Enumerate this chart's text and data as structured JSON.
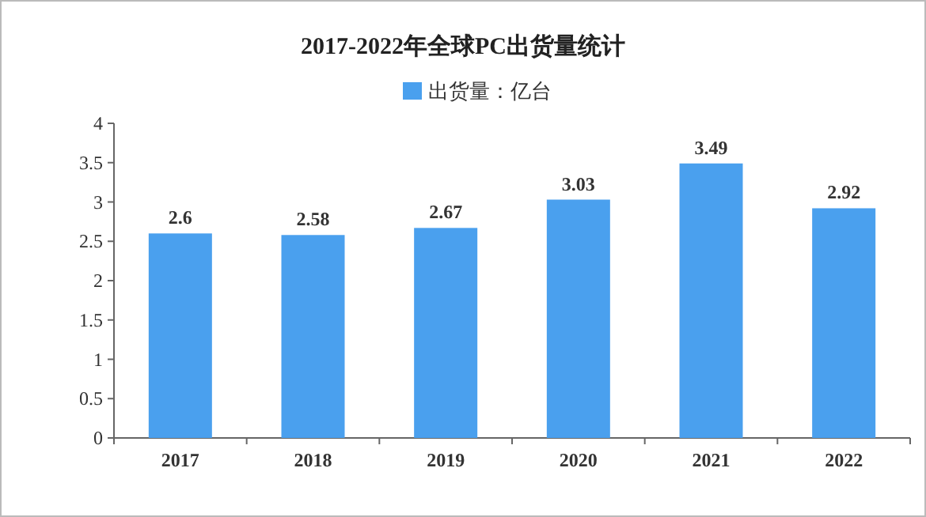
{
  "chart_data": {
    "type": "bar",
    "title": "2017-2022年全球PC出货量统计",
    "categories": [
      "2017",
      "2018",
      "2019",
      "2020",
      "2021",
      "2022"
    ],
    "series": [
      {
        "name": "出货量：亿台",
        "color": "#4aa0ee",
        "values": [
          2.6,
          2.58,
          2.67,
          3.03,
          3.49,
          2.92
        ]
      }
    ],
    "ylim": [
      0,
      4
    ],
    "yticks": [
      0,
      0.5,
      1,
      1.5,
      2,
      2.5,
      3,
      3.5,
      4
    ],
    "grid": false,
    "legend": "top",
    "data_labels": true
  }
}
